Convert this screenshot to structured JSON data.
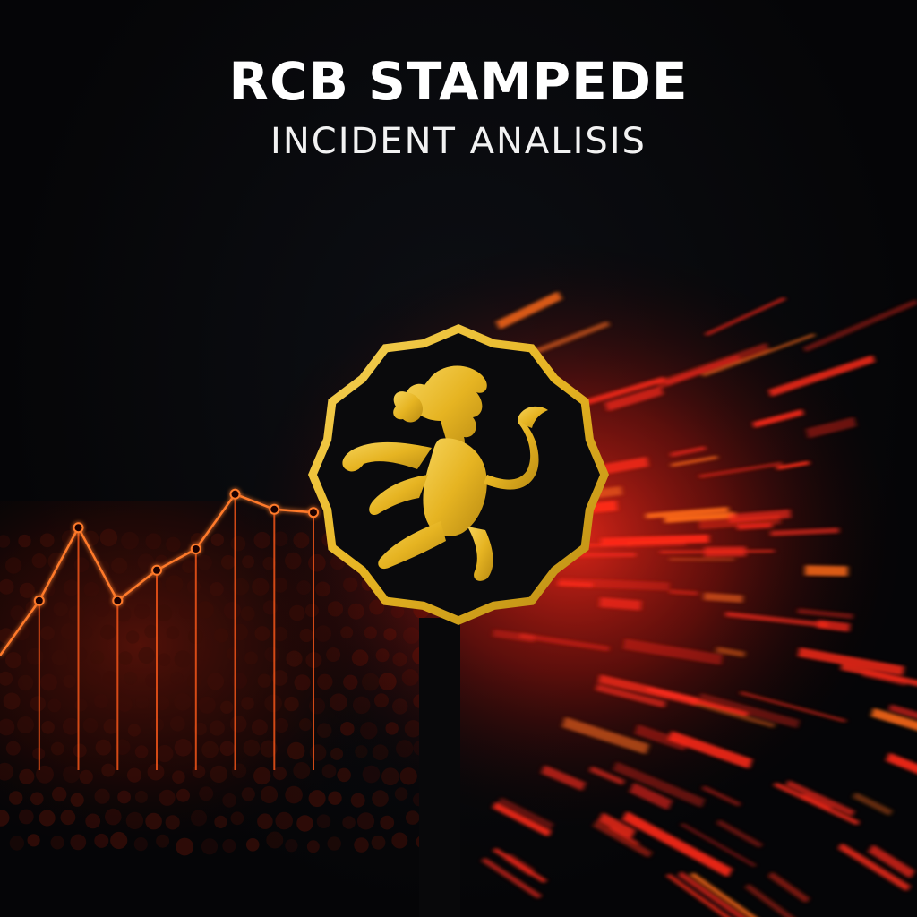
{
  "header": {
    "title": "RCB STAMPEDE",
    "subtitle": "INCIDENT ANALISIS"
  },
  "colors": {
    "background": "#050507",
    "accent_red": "#ff2a1a",
    "accent_orange": "#ff6a1a",
    "gold": "#e6b422",
    "text": "#ffffff"
  },
  "icons": {
    "emblem": "lion-rampant-emblem-icon"
  },
  "chart_data": {
    "type": "line",
    "x": [
      1,
      2,
      3,
      4,
      5,
      6,
      7,
      8,
      9
    ],
    "series": [
      {
        "values": [
          20,
          38,
          62,
          38,
          48,
          55,
          73,
          68,
          67
        ]
      }
    ],
    "ylim": [
      0,
      100
    ]
  }
}
